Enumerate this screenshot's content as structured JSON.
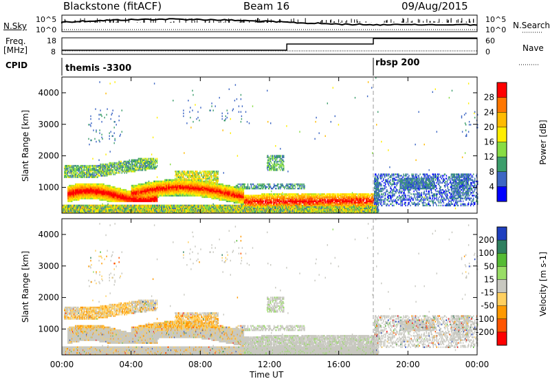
{
  "header": {
    "station": "Blackstone (fitACF)",
    "beam": "Beam 16",
    "date": "09/Aug/2015"
  },
  "noise_panel": {
    "left_label": "N.Sky",
    "right_label": "N.Search",
    "left_ticks": [
      "10^5",
      "10^0"
    ],
    "right_ticks": [
      "10^5",
      "10^0"
    ]
  },
  "freq_panel": {
    "left_label_1": "Freq.",
    "left_label_2": "[MHz]",
    "right_label": "Nave",
    "left_ticks": [
      "18",
      "8"
    ],
    "right_ticks": [
      "60",
      "0"
    ]
  },
  "cpid_panel": {
    "label": "CPID",
    "programs": [
      "themis -3300",
      "rbsp 200"
    ]
  },
  "chart_data": [
    {
      "type": "heatmap",
      "name": "power",
      "ylabel": "Slant Range [km]",
      "yticks": [
        "1000",
        "2000",
        "3000",
        "4000"
      ],
      "ylim": [
        180,
        4500
      ],
      "xlim": [
        0,
        24
      ],
      "colorbar_label": "Power [dB]",
      "colorbar_ticks": [
        "28",
        "24",
        "20",
        "16",
        "12",
        "8",
        "4"
      ],
      "colorbar_colors": [
        "#ff0000",
        "#ff7700",
        "#ffbb00",
        "#ffee00",
        "#88dd44",
        "#3c9e6c",
        "#3d66c4",
        "#0000ff"
      ]
    },
    {
      "type": "heatmap",
      "name": "velocity",
      "ylabel": "Slant Range [km]",
      "yticks": [
        "1000",
        "2000",
        "3000",
        "4000"
      ],
      "ylim": [
        180,
        4500
      ],
      "xlim": [
        0,
        24
      ],
      "colorbar_label": "Velocity [m s-1]",
      "colorbar_ticks": [
        "200",
        "100",
        "50",
        "15",
        "-15",
        "-50",
        "-100",
        "-200"
      ],
      "colorbar_colors": [
        "#1f3fbf",
        "#2f7f5f",
        "#55bb33",
        "#99dd66",
        "#c8c8c0",
        "#ffd060",
        "#ff9900",
        "#ff5500",
        "#ff0000"
      ]
    }
  ],
  "x_axis": {
    "ticks": [
      "00:00",
      "04:00",
      "08:00",
      "12:00",
      "16:00",
      "20:00",
      "00:00"
    ],
    "label": "Time UT"
  }
}
